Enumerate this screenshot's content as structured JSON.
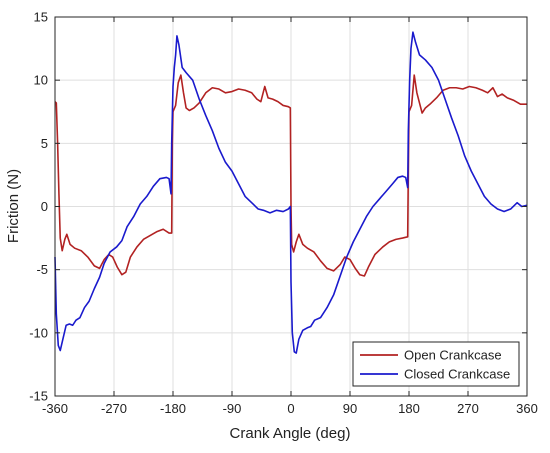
{
  "chart_data": {
    "type": "line",
    "title": "",
    "xlabel": "Crank Angle (deg)",
    "ylabel": "Friction (N)",
    "xlim": [
      -360,
      360
    ],
    "ylim": [
      -15,
      15
    ],
    "xticks": [
      -360,
      -270,
      -180,
      -90,
      0,
      90,
      180,
      270,
      360
    ],
    "yticks": [
      -15,
      -10,
      -5,
      0,
      5,
      10,
      15
    ],
    "grid": true,
    "legend_position": "bottom-right",
    "series": [
      {
        "name": "Open Crankcase",
        "color": "#b22222",
        "points": [
          [
            -360,
            8.3
          ],
          [
            -358,
            8.2
          ],
          [
            -356,
            5.0
          ],
          [
            -354,
            1.0
          ],
          [
            -352,
            -2.5
          ],
          [
            -349,
            -3.5
          ],
          [
            -345,
            -2.6
          ],
          [
            -342,
            -2.2
          ],
          [
            -337,
            -3.0
          ],
          [
            -330,
            -3.3
          ],
          [
            -320,
            -3.5
          ],
          [
            -310,
            -4.0
          ],
          [
            -300,
            -4.7
          ],
          [
            -292,
            -4.9
          ],
          [
            -285,
            -4.2
          ],
          [
            -278,
            -3.8
          ],
          [
            -272,
            -4.0
          ],
          [
            -265,
            -4.8
          ],
          [
            -258,
            -5.4
          ],
          [
            -252,
            -5.2
          ],
          [
            -245,
            -4.0
          ],
          [
            -235,
            -3.2
          ],
          [
            -225,
            -2.6
          ],
          [
            -215,
            -2.3
          ],
          [
            -205,
            -2.0
          ],
          [
            -195,
            -1.8
          ],
          [
            -186,
            -2.1
          ],
          [
            -182,
            -2.1
          ],
          [
            -181,
            5.0
          ],
          [
            -180,
            7.5
          ],
          [
            -176,
            8.0
          ],
          [
            -172,
            9.8
          ],
          [
            -168,
            10.4
          ],
          [
            -164,
            9.0
          ],
          [
            -160,
            7.8
          ],
          [
            -155,
            7.6
          ],
          [
            -148,
            7.8
          ],
          [
            -140,
            8.2
          ],
          [
            -130,
            9.0
          ],
          [
            -120,
            9.4
          ],
          [
            -110,
            9.3
          ],
          [
            -100,
            9.0
          ],
          [
            -90,
            9.1
          ],
          [
            -80,
            9.3
          ],
          [
            -70,
            9.2
          ],
          [
            -60,
            9.0
          ],
          [
            -52,
            8.5
          ],
          [
            -46,
            8.3
          ],
          [
            -40,
            9.5
          ],
          [
            -35,
            8.6
          ],
          [
            -28,
            8.5
          ],
          [
            -20,
            8.3
          ],
          [
            -12,
            8.0
          ],
          [
            -4,
            7.9
          ],
          [
            -1,
            7.8
          ],
          [
            0,
            0.0
          ],
          [
            1,
            -3.0
          ],
          [
            4,
            -3.6
          ],
          [
            8,
            -2.8
          ],
          [
            12,
            -2.2
          ],
          [
            18,
            -3.0
          ],
          [
            25,
            -3.3
          ],
          [
            35,
            -3.6
          ],
          [
            45,
            -4.3
          ],
          [
            55,
            -4.9
          ],
          [
            65,
            -5.1
          ],
          [
            75,
            -4.6
          ],
          [
            82,
            -4.0
          ],
          [
            90,
            -4.2
          ],
          [
            98,
            -4.9
          ],
          [
            105,
            -5.4
          ],
          [
            112,
            -5.5
          ],
          [
            118,
            -4.8
          ],
          [
            128,
            -3.8
          ],
          [
            140,
            -3.2
          ],
          [
            150,
            -2.8
          ],
          [
            160,
            -2.6
          ],
          [
            170,
            -2.5
          ],
          [
            178,
            -2.4
          ],
          [
            179,
            3.0
          ],
          [
            180,
            7.5
          ],
          [
            184,
            8.0
          ],
          [
            188,
            10.4
          ],
          [
            192,
            9.0
          ],
          [
            196,
            8.2
          ],
          [
            200,
            7.4
          ],
          [
            205,
            7.8
          ],
          [
            212,
            8.1
          ],
          [
            222,
            8.6
          ],
          [
            232,
            9.2
          ],
          [
            242,
            9.4
          ],
          [
            252,
            9.4
          ],
          [
            262,
            9.3
          ],
          [
            272,
            9.5
          ],
          [
            282,
            9.4
          ],
          [
            292,
            9.2
          ],
          [
            300,
            9.0
          ],
          [
            308,
            9.4
          ],
          [
            315,
            8.7
          ],
          [
            322,
            8.9
          ],
          [
            330,
            8.6
          ],
          [
            340,
            8.4
          ],
          [
            350,
            8.1
          ],
          [
            360,
            8.1
          ]
        ]
      },
      {
        "name": "Closed Crankcase",
        "color": "#1a1acd",
        "points": [
          [
            -360,
            -4.0
          ],
          [
            -358,
            -8.5
          ],
          [
            -355,
            -11.0
          ],
          [
            -352,
            -11.4
          ],
          [
            -348,
            -10.5
          ],
          [
            -343,
            -9.4
          ],
          [
            -338,
            -9.3
          ],
          [
            -333,
            -9.4
          ],
          [
            -328,
            -9.0
          ],
          [
            -322,
            -8.8
          ],
          [
            -315,
            -8.0
          ],
          [
            -308,
            -7.5
          ],
          [
            -300,
            -6.5
          ],
          [
            -292,
            -5.6
          ],
          [
            -285,
            -4.5
          ],
          [
            -276,
            -3.6
          ],
          [
            -266,
            -3.2
          ],
          [
            -258,
            -2.7
          ],
          [
            -250,
            -1.6
          ],
          [
            -240,
            -0.8
          ],
          [
            -230,
            0.2
          ],
          [
            -220,
            0.8
          ],
          [
            -210,
            1.6
          ],
          [
            -200,
            2.2
          ],
          [
            -190,
            2.3
          ],
          [
            -186,
            2.2
          ],
          [
            -183,
            1.0
          ],
          [
            -182,
            5.0
          ],
          [
            -180,
            9.5
          ],
          [
            -178,
            11.0
          ],
          [
            -176,
            12.0
          ],
          [
            -174,
            13.5
          ],
          [
            -171,
            12.8
          ],
          [
            -166,
            11.0
          ],
          [
            -160,
            10.6
          ],
          [
            -150,
            10.0
          ],
          [
            -140,
            8.5
          ],
          [
            -130,
            7.2
          ],
          [
            -120,
            6.0
          ],
          [
            -110,
            4.6
          ],
          [
            -100,
            3.5
          ],
          [
            -90,
            2.8
          ],
          [
            -80,
            1.8
          ],
          [
            -70,
            0.8
          ],
          [
            -60,
            0.3
          ],
          [
            -50,
            -0.2
          ],
          [
            -42,
            -0.3
          ],
          [
            -32,
            -0.5
          ],
          [
            -22,
            -0.3
          ],
          [
            -12,
            -0.4
          ],
          [
            -4,
            -0.2
          ],
          [
            -1,
            0.0
          ],
          [
            0,
            -6.0
          ],
          [
            2,
            -10.0
          ],
          [
            5,
            -11.5
          ],
          [
            8,
            -11.6
          ],
          [
            12,
            -10.5
          ],
          [
            18,
            -9.8
          ],
          [
            25,
            -9.6
          ],
          [
            30,
            -9.5
          ],
          [
            36,
            -9.0
          ],
          [
            45,
            -8.8
          ],
          [
            55,
            -8.0
          ],
          [
            65,
            -7.0
          ],
          [
            75,
            -5.5
          ],
          [
            85,
            -4.0
          ],
          [
            95,
            -2.8
          ],
          [
            105,
            -1.8
          ],
          [
            115,
            -0.8
          ],
          [
            125,
            0.0
          ],
          [
            135,
            0.6
          ],
          [
            145,
            1.2
          ],
          [
            155,
            1.8
          ],
          [
            163,
            2.3
          ],
          [
            170,
            2.4
          ],
          [
            175,
            2.3
          ],
          [
            178,
            1.5
          ],
          [
            179,
            6.0
          ],
          [
            181,
            10.0
          ],
          [
            183,
            12.5
          ],
          [
            186,
            13.8
          ],
          [
            190,
            13.0
          ],
          [
            196,
            12.0
          ],
          [
            205,
            11.6
          ],
          [
            215,
            11.0
          ],
          [
            225,
            10.0
          ],
          [
            235,
            8.5
          ],
          [
            245,
            7.0
          ],
          [
            255,
            5.6
          ],
          [
            265,
            4.0
          ],
          [
            275,
            2.8
          ],
          [
            285,
            1.8
          ],
          [
            295,
            0.8
          ],
          [
            305,
            0.2
          ],
          [
            315,
            -0.2
          ],
          [
            325,
            -0.4
          ],
          [
            335,
            -0.2
          ],
          [
            345,
            0.3
          ],
          [
            352,
            0.0
          ],
          [
            360,
            0.1
          ]
        ]
      }
    ]
  }
}
